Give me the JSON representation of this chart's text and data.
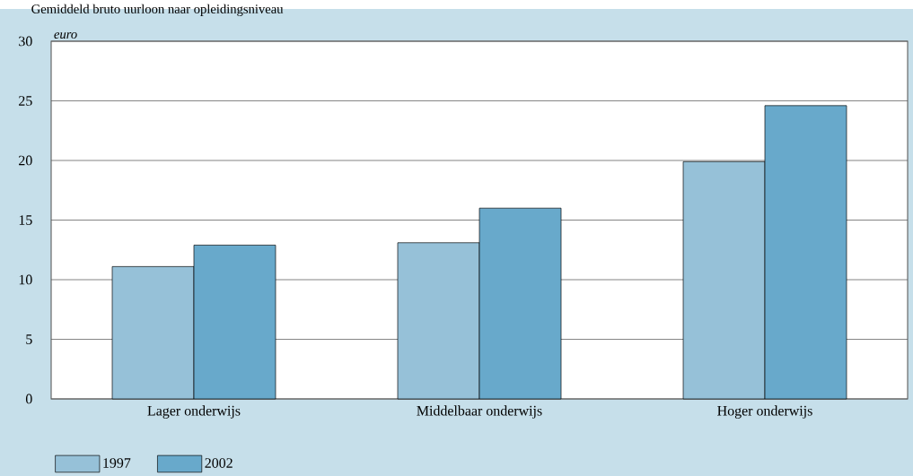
{
  "chart_data": {
    "type": "bar",
    "title": "Gemiddeld bruto uurloon naar opleidingsniveau",
    "ylabel": "euro",
    "categories": [
      "Lager onderwijs",
      "Middelbaar onderwijs",
      "Hoger onderwijs"
    ],
    "series": [
      {
        "name": "1997",
        "color": "#96c1d8",
        "values": [
          11.1,
          13.1,
          19.9
        ]
      },
      {
        "name": "2002",
        "color": "#68a9cb",
        "values": [
          12.9,
          16.0,
          24.6
        ]
      }
    ],
    "ylim": [
      0,
      30
    ],
    "yticks": [
      0,
      5,
      10,
      15,
      20,
      25,
      30
    ],
    "grid": "y",
    "legend": "bottom"
  }
}
